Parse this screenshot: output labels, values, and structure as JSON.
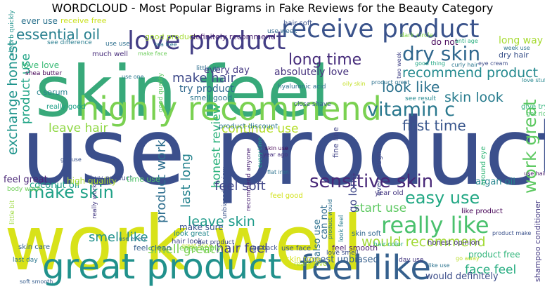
{
  "chart_data": {
    "type": "wordcloud",
    "title": "WORDCLOUD - Most Popular Bigrams in Fake Reviews for the Beauty Category",
    "words": [
      {
        "text": "use product",
        "color": "#3b4f8c"
      },
      {
        "text": "skin feel",
        "color": "#38a97a"
      },
      {
        "text": "work well",
        "color": "#d8e219"
      },
      {
        "text": "great product",
        "color": "#21918c"
      },
      {
        "text": "highly recommend",
        "color": "#7ad151"
      },
      {
        "text": "feel like",
        "color": "#35608d"
      },
      {
        "text": "love product",
        "color": "#433e85"
      },
      {
        "text": "receive product",
        "color": "#3a538b"
      },
      {
        "text": "dry skin",
        "color": "#31688e"
      },
      {
        "text": "sensitive skin",
        "color": "#482878"
      },
      {
        "text": "vitamin c",
        "color": "#2a788e"
      },
      {
        "text": "really like",
        "color": "#4ac16d"
      },
      {
        "text": "make skin",
        "color": "#1fa187"
      },
      {
        "text": "work great",
        "color": "#5ec962"
      },
      {
        "text": "easy use",
        "color": "#22a884"
      },
      {
        "text": "recommend product",
        "color": "#23898e"
      },
      {
        "text": "essential oil",
        "color": "#277f8e"
      },
      {
        "text": "long time",
        "color": "#472d7b"
      },
      {
        "text": "make hair",
        "color": "#3e4989"
      },
      {
        "text": "look like",
        "color": "#2c728e"
      },
      {
        "text": "skin look",
        "color": "#287c8e"
      },
      {
        "text": "first time",
        "color": "#39568c"
      },
      {
        "text": "exchange honest",
        "color": "#1f948c"
      },
      {
        "text": "product use",
        "color": "#20a486"
      },
      {
        "text": "leave hair",
        "color": "#8fd744"
      },
      {
        "text": "continue use",
        "color": "#b5de2b"
      },
      {
        "text": "honest review",
        "color": "#2db27d"
      },
      {
        "text": "last long",
        "color": "#25838e"
      },
      {
        "text": "product work",
        "color": "#2e6e8e"
      },
      {
        "text": "feel soft",
        "color": "#404688"
      },
      {
        "text": "leave skin",
        "color": "#1e9b8a"
      },
      {
        "text": "would recommend",
        "color": "#a2da37"
      },
      {
        "text": "start use",
        "color": "#5ec962"
      },
      {
        "text": "smell like",
        "color": "#21918c"
      },
      {
        "text": "smell great",
        "color": "#7ad151"
      },
      {
        "text": "hair feel",
        "color": "#414487"
      },
      {
        "text": "face feel",
        "color": "#27ad81"
      },
      {
        "text": "try product",
        "color": "#30698e"
      },
      {
        "text": "every day",
        "color": "#443983"
      },
      {
        "text": "absolutely love",
        "color": "#46327e"
      },
      {
        "text": "smell good",
        "color": "#2a788e"
      },
      {
        "text": "make sure",
        "color": "#3b528b"
      },
      {
        "text": "great price",
        "color": "#c0df25"
      },
      {
        "text": "go long",
        "color": "#3f4788"
      },
      {
        "text": "can not",
        "color": "#2f6b8e"
      },
      {
        "text": "also use",
        "color": "#2d708e"
      },
      {
        "text": "honest unbiased",
        "color": "#355f8d"
      },
      {
        "text": "would definitely",
        "color": "#3d4e8a"
      },
      {
        "text": "like product",
        "color": "#440154"
      },
      {
        "text": "product free",
        "color": "#31b57b"
      },
      {
        "text": "argan oil",
        "color": "#25858e"
      },
      {
        "text": "coconut oil",
        "color": "#1f9e89"
      },
      {
        "text": "high quality",
        "color": "#addc30"
      },
      {
        "text": "feel great",
        "color": "#482475"
      },
      {
        "text": "buy product",
        "color": "#3e4a89"
      },
      {
        "text": "time use",
        "color": "#52c569"
      },
      {
        "text": "c serum",
        "color": "#26828e"
      },
      {
        "text": "shea butter",
        "color": "#440154"
      },
      {
        "text": "much well",
        "color": "#472c7a"
      },
      {
        "text": "love love",
        "color": "#3aba76"
      },
      {
        "text": "use use",
        "color": "#2e6f8e"
      },
      {
        "text": "ever use",
        "color": "#2c738e"
      },
      {
        "text": "receive free",
        "color": "#cae11f"
      },
      {
        "text": "see difference",
        "color": "#287d8e"
      },
      {
        "text": "good product",
        "color": "#a5db36"
      },
      {
        "text": "definitely recommend",
        "color": "#481f70"
      },
      {
        "text": "hair soft",
        "color": "#3b518b"
      },
      {
        "text": "use week",
        "color": "#31678e"
      },
      {
        "text": "do not",
        "color": "#46075a"
      },
      {
        "text": "dark circle",
        "color": "#84d44b"
      },
      {
        "text": "long way",
        "color": "#a8db34"
      },
      {
        "text": "dry hair",
        "color": "#3b528b"
      },
      {
        "text": "anti age",
        "color": "#29af7f"
      },
      {
        "text": "week use",
        "color": "#2b758e"
      },
      {
        "text": "curly hair",
        "color": "#2a768e"
      },
      {
        "text": "eye cream",
        "color": "#3e4c8a"
      },
      {
        "text": "good thing",
        "color": "#22a785"
      },
      {
        "text": "two week",
        "color": "#414287"
      },
      {
        "text": "love stuff",
        "color": "#24868e"
      },
      {
        "text": "product great",
        "color": "#2d718e"
      },
      {
        "text": "oily skin",
        "color": "#c2df23"
      },
      {
        "text": "see result",
        "color": "#23888e"
      },
      {
        "text": "give try",
        "color": "#31b57b"
      },
      {
        "text": "get rid",
        "color": "#4ec36b"
      },
      {
        "text": "hyaluronic acid",
        "color": "#2d708e"
      },
      {
        "text": "close shave",
        "color": "#365c8d"
      },
      {
        "text": "product discount",
        "color": "#2a768e"
      },
      {
        "text": "fine line",
        "color": "#414487"
      },
      {
        "text": "unbiased review",
        "color": "#3b528b"
      },
      {
        "text": "recommend anyone",
        "color": "#482173"
      },
      {
        "text": "skin use",
        "color": "#440154"
      },
      {
        "text": "year ago",
        "color": "#46307e"
      },
      {
        "text": "flat iron",
        "color": "#2c728e"
      },
      {
        "text": "every time",
        "color": "#1e9c89"
      },
      {
        "text": "even though",
        "color": "#3f4889"
      },
      {
        "text": "around eye",
        "color": "#35b779"
      },
      {
        "text": "use hair",
        "color": "#481668"
      },
      {
        "text": "year old",
        "color": "#453781"
      },
      {
        "text": "feel good",
        "color": "#d2e21b"
      },
      {
        "text": "little go",
        "color": "#2e6d8e"
      },
      {
        "text": "really good",
        "color": "#1fa088"
      },
      {
        "text": "absorb quickly",
        "color": "#20928c"
      },
      {
        "text": "tea tree",
        "color": "#2c718e"
      },
      {
        "text": "make face",
        "color": "#6ccd5a"
      },
      {
        "text": "good quality",
        "color": "#5cc863"
      },
      {
        "text": "use one",
        "color": "#2a778e"
      },
      {
        "text": "body wash",
        "color": "#6ece58"
      },
      {
        "text": "get use",
        "color": "#3b528b"
      },
      {
        "text": "shampoo conditioner",
        "color": "#443a83"
      },
      {
        "text": "skin care",
        "color": "#33638d"
      },
      {
        "text": "little bit",
        "color": "#9bd93c"
      },
      {
        "text": "last day",
        "color": "#2a768e"
      },
      {
        "text": "soft smooth",
        "color": "#365d8d"
      },
      {
        "text": "really work",
        "color": "#443a83"
      },
      {
        "text": "look great",
        "color": "#23898e"
      },
      {
        "text": "hair look",
        "color": "#3f4788"
      },
      {
        "text": "use every",
        "color": "#2f6c8e"
      },
      {
        "text": "feel clean",
        "color": "#355e8d"
      },
      {
        "text": "easy apply",
        "color": "#73d056"
      },
      {
        "text": "get product",
        "color": "#3e4989"
      },
      {
        "text": "go back",
        "color": "#3b528b"
      },
      {
        "text": "use face",
        "color": "#39568c"
      },
      {
        "text": "feel smooth",
        "color": "#481a6c"
      },
      {
        "text": "skin tone",
        "color": "#d5e21a"
      },
      {
        "text": "really love",
        "color": "#addc30"
      },
      {
        "text": "love smell",
        "color": "#3c4f8a"
      },
      {
        "text": "product would",
        "color": "#2d708e"
      },
      {
        "text": "look feel",
        "color": "#287d8e"
      },
      {
        "text": "skin soft",
        "color": "#31688e"
      },
      {
        "text": "hair color",
        "color": "#27ad81"
      },
      {
        "text": "honest opinion",
        "color": "#46337f"
      },
      {
        "text": "day use",
        "color": "#453781"
      },
      {
        "text": "like use",
        "color": "#2c738e"
      },
      {
        "text": "product make",
        "color": "#3b518b"
      },
      {
        "text": "go away",
        "color": "#bade28"
      }
    ]
  }
}
